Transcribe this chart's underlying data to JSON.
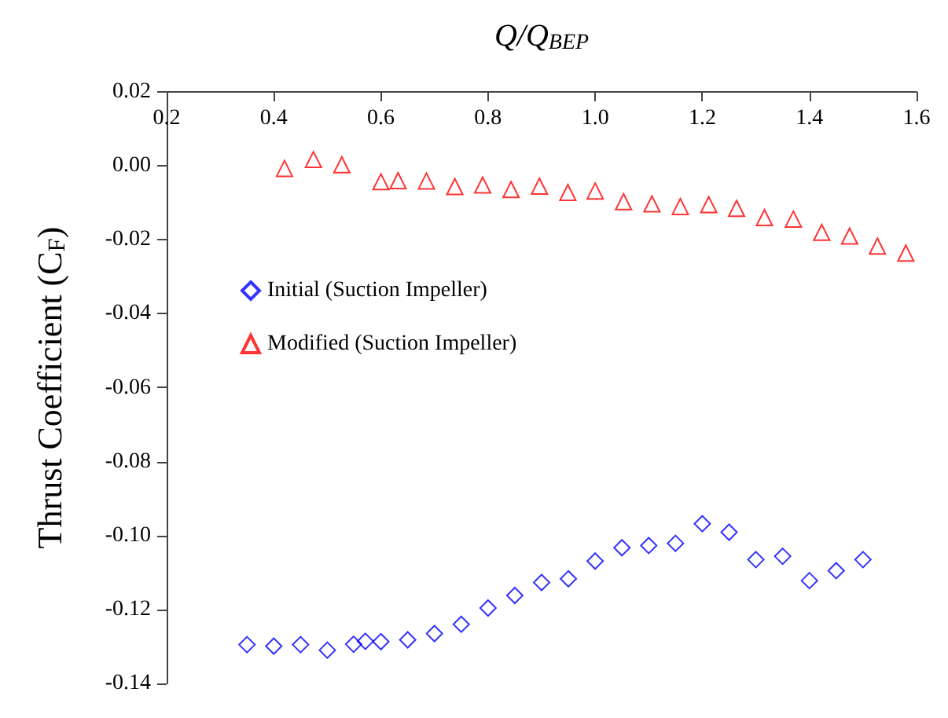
{
  "chart_data": {
    "type": "scatter",
    "xlabel": "Q/Q$_{BEP}$",
    "ylabel": "Thrust Coefficient (C$_{F}$)",
    "xlim": [
      0.2,
      1.6
    ],
    "xticks": [
      0.2,
      0.4,
      0.6,
      0.8,
      {
        "value": 1,
        "label": "1.0"
      },
      1.2,
      1.4,
      1.6
    ],
    "ylim": [
      -0.14,
      0.02
    ],
    "yticks": [
      -0.14,
      -0.12,
      {
        "value": -0.1,
        "label": "-0.10"
      },
      -0.08,
      -0.06,
      -0.04,
      -0.02,
      {
        "value": 0,
        "label": "0.00"
      },
      0.02
    ],
    "grid": false,
    "legend": "left",
    "series": [
      {
        "name": "Initial (Suction Impeller)",
        "color": "#0000ff",
        "marker": "diamond",
        "x": [
          0.35,
          0.4,
          0.45,
          0.5,
          0.549,
          0.571,
          0.6,
          0.65,
          0.7,
          0.75,
          0.8,
          0.85,
          0.9,
          0.95,
          1.0,
          1.05,
          1.1,
          1.15,
          1.2,
          1.25,
          1.3,
          1.35,
          1.4,
          1.45,
          1.5
        ],
        "values": [
          -0.1295,
          -0.1299,
          -0.1295,
          -0.131,
          -0.1294,
          -0.1286,
          -0.1287,
          -0.1282,
          -0.1265,
          -0.124,
          -0.1196,
          -0.1162,
          -0.1127,
          -0.1117,
          -0.1069,
          -0.1033,
          -0.1027,
          -0.1021,
          -0.0968,
          -0.0991,
          -0.1065,
          -0.1056,
          -0.1122,
          -0.1095,
          -0.1065
        ]
      },
      {
        "name": "Modified (Suction Impeller)",
        "color": "#ff0000",
        "marker": "triangle",
        "x": [
          0.42,
          0.474,
          0.527,
          0.6,
          0.632,
          0.685,
          0.738,
          0.79,
          0.843,
          0.896,
          0.949,
          1.0,
          1.053,
          1.106,
          1.159,
          1.212,
          1.264,
          1.316,
          1.37,
          1.423,
          1.475,
          1.527,
          1.58
        ],
        "values": [
          -0.0007,
          0.0017,
          0.0003,
          -0.0043,
          -0.004,
          -0.0041,
          -0.0056,
          -0.0052,
          -0.0064,
          -0.0055,
          -0.0072,
          -0.0068,
          -0.0097,
          -0.0103,
          -0.011,
          -0.0105,
          -0.0115,
          -0.014,
          -0.0144,
          -0.018,
          -0.019,
          -0.0217,
          -0.0236
        ]
      }
    ]
  }
}
